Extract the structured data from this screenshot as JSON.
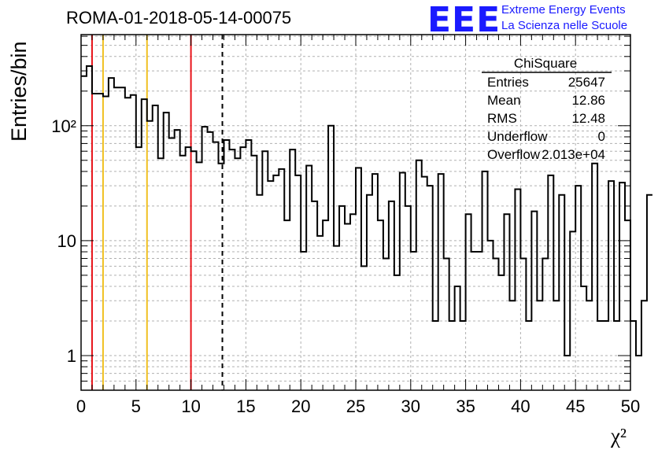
{
  "title": "ROMA-01-2018-05-14-00075",
  "logo": {
    "mark": "EEE",
    "line1": "Extreme Energy Events",
    "line2": "La Scienza nelle Scuole",
    "color": "#1a1aff"
  },
  "stats": {
    "name": "ChiSquare",
    "rows": [
      {
        "label": "Entries",
        "value": "25647"
      },
      {
        "label": "Mean",
        "value": "12.86"
      },
      {
        "label": "RMS",
        "value": "12.48"
      },
      {
        "label": "Underflow",
        "value": "0"
      },
      {
        "label": "Overflow",
        "value": "2.013e+04"
      }
    ]
  },
  "chart_data": {
    "type": "bar",
    "style": "step-histogram",
    "ylabel": "Entries/bin",
    "xlabel": "χ²",
    "xlim": [
      0,
      50
    ],
    "ylim": [
      0.5,
      620
    ],
    "ylog": true,
    "grid": true,
    "bin_width": 0.5,
    "x_ticks": [
      "0",
      "5",
      "10",
      "15",
      "20",
      "25",
      "30",
      "35",
      "40",
      "45",
      "50"
    ],
    "y_ticks": [
      {
        "value": 1,
        "label": "1"
      },
      {
        "value": 10,
        "label": "10"
      },
      {
        "value": 100,
        "label": "10²"
      }
    ],
    "values": [
      270,
      330,
      190,
      190,
      180,
      260,
      215,
      215,
      175,
      185,
      65,
      170,
      110,
      150,
      52,
      130,
      78,
      92,
      55,
      65,
      60,
      48,
      98,
      88,
      72,
      47,
      75,
      62,
      52,
      65,
      75,
      55,
      25,
      60,
      33,
      37,
      42,
      15,
      62,
      37,
      8,
      45,
      22,
      11,
      15,
      100,
      9,
      20,
      14,
      17,
      43,
      6,
      25,
      38,
      15,
      7,
      22,
      5,
      39,
      20,
      8,
      50,
      36,
      30,
      2,
      38,
      7,
      2,
      4,
      2,
      17,
      8,
      8,
      40,
      10,
      7,
      5,
      17,
      3,
      28,
      7,
      2,
      18,
      3,
      7,
      37,
      3,
      25,
      1,
      12,
      30,
      4,
      3,
      47,
      2,
      2,
      33,
      2,
      32,
      15,
      2,
      1,
      3,
      25
    ],
    "vlines": [
      {
        "x": 1,
        "color": "#e8141a",
        "style": "solid"
      },
      {
        "x": 2,
        "color": "#f0c020",
        "style": "solid"
      },
      {
        "x": 6,
        "color": "#f0c020",
        "style": "solid"
      },
      {
        "x": 10,
        "color": "#e8141a",
        "style": "solid"
      },
      {
        "x": 12.86,
        "color": "#000000",
        "style": "dashed"
      }
    ]
  }
}
